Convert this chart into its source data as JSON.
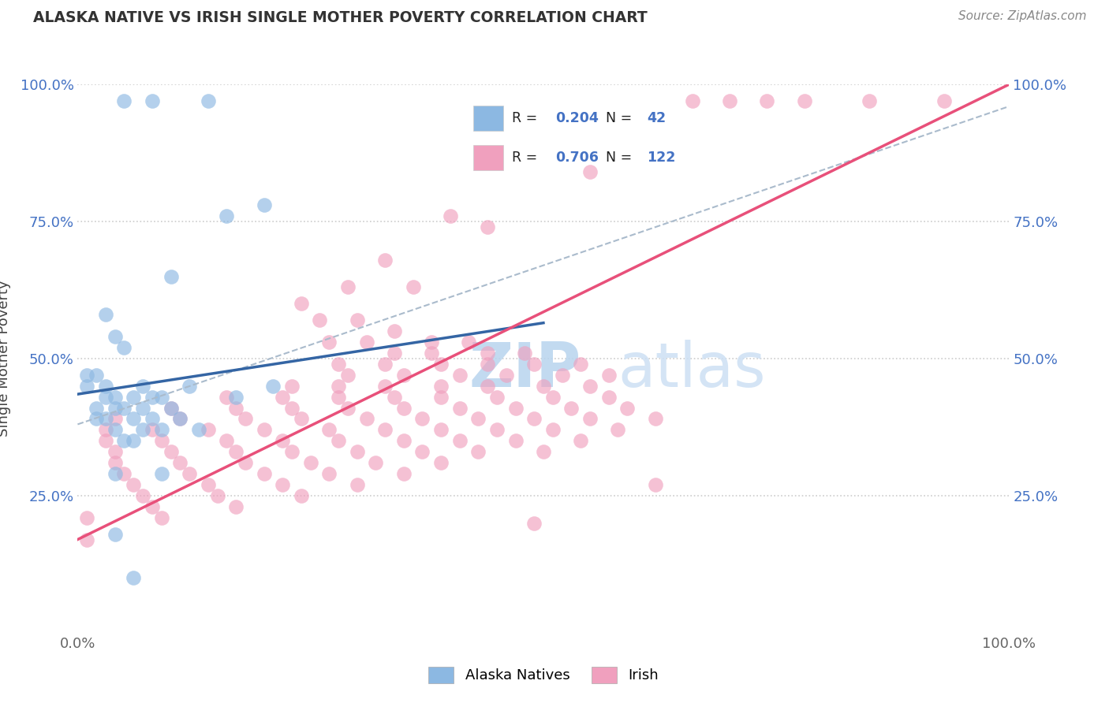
{
  "title": "ALASKA NATIVE VS IRISH SINGLE MOTHER POVERTY CORRELATION CHART",
  "source": "Source: ZipAtlas.com",
  "ylabel": "Single Mother Poverty",
  "xlabel": "",
  "xlim": [
    0,
    1
  ],
  "ylim": [
    0,
    1
  ],
  "alaska_R": 0.204,
  "alaska_N": 42,
  "irish_R": 0.706,
  "irish_N": 122,
  "alaska_color": "#8cb8e2",
  "irish_color": "#f0a0be",
  "alaska_line_color": "#3465a4",
  "irish_line_color": "#e8507a",
  "dashed_line_color": "#aabbcc",
  "watermark_color": "#cce0f0",
  "background_color": "#ffffff",
  "tick_color": "#4472c4",
  "alaska_line": [
    0.0,
    0.435,
    0.5,
    0.565
  ],
  "irish_line": [
    0.0,
    0.17,
    1.0,
    1.0
  ],
  "dashed_line": [
    0.0,
    0.38,
    1.0,
    0.96
  ],
  "alaska_scatter": [
    [
      0.05,
      0.97
    ],
    [
      0.08,
      0.97
    ],
    [
      0.14,
      0.97
    ],
    [
      0.16,
      0.76
    ],
    [
      0.2,
      0.78
    ],
    [
      0.1,
      0.65
    ],
    [
      0.03,
      0.58
    ],
    [
      0.04,
      0.54
    ],
    [
      0.05,
      0.52
    ],
    [
      0.01,
      0.47
    ],
    [
      0.02,
      0.47
    ],
    [
      0.01,
      0.45
    ],
    [
      0.03,
      0.45
    ],
    [
      0.07,
      0.45
    ],
    [
      0.12,
      0.45
    ],
    [
      0.21,
      0.45
    ],
    [
      0.03,
      0.43
    ],
    [
      0.04,
      0.43
    ],
    [
      0.06,
      0.43
    ],
    [
      0.08,
      0.43
    ],
    [
      0.09,
      0.43
    ],
    [
      0.17,
      0.43
    ],
    [
      0.02,
      0.41
    ],
    [
      0.04,
      0.41
    ],
    [
      0.05,
      0.41
    ],
    [
      0.07,
      0.41
    ],
    [
      0.1,
      0.41
    ],
    [
      0.02,
      0.39
    ],
    [
      0.03,
      0.39
    ],
    [
      0.06,
      0.39
    ],
    [
      0.08,
      0.39
    ],
    [
      0.11,
      0.39
    ],
    [
      0.04,
      0.37
    ],
    [
      0.07,
      0.37
    ],
    [
      0.09,
      0.37
    ],
    [
      0.13,
      0.37
    ],
    [
      0.05,
      0.35
    ],
    [
      0.06,
      0.35
    ],
    [
      0.04,
      0.29
    ],
    [
      0.09,
      0.29
    ],
    [
      0.04,
      0.18
    ],
    [
      0.06,
      0.1
    ]
  ],
  "irish_scatter": [
    [
      0.66,
      0.97
    ],
    [
      0.7,
      0.97
    ],
    [
      0.74,
      0.97
    ],
    [
      0.78,
      0.97
    ],
    [
      0.85,
      0.97
    ],
    [
      0.93,
      0.97
    ],
    [
      0.55,
      0.84
    ],
    [
      0.4,
      0.76
    ],
    [
      0.44,
      0.74
    ],
    [
      0.33,
      0.68
    ],
    [
      0.29,
      0.63
    ],
    [
      0.36,
      0.63
    ],
    [
      0.24,
      0.6
    ],
    [
      0.26,
      0.57
    ],
    [
      0.3,
      0.57
    ],
    [
      0.34,
      0.55
    ],
    [
      0.27,
      0.53
    ],
    [
      0.31,
      0.53
    ],
    [
      0.38,
      0.53
    ],
    [
      0.42,
      0.53
    ],
    [
      0.34,
      0.51
    ],
    [
      0.38,
      0.51
    ],
    [
      0.44,
      0.51
    ],
    [
      0.48,
      0.51
    ],
    [
      0.28,
      0.49
    ],
    [
      0.33,
      0.49
    ],
    [
      0.39,
      0.49
    ],
    [
      0.44,
      0.49
    ],
    [
      0.49,
      0.49
    ],
    [
      0.54,
      0.49
    ],
    [
      0.29,
      0.47
    ],
    [
      0.35,
      0.47
    ],
    [
      0.41,
      0.47
    ],
    [
      0.46,
      0.47
    ],
    [
      0.52,
      0.47
    ],
    [
      0.57,
      0.47
    ],
    [
      0.23,
      0.45
    ],
    [
      0.28,
      0.45
    ],
    [
      0.33,
      0.45
    ],
    [
      0.39,
      0.45
    ],
    [
      0.44,
      0.45
    ],
    [
      0.5,
      0.45
    ],
    [
      0.55,
      0.45
    ],
    [
      0.16,
      0.43
    ],
    [
      0.22,
      0.43
    ],
    [
      0.28,
      0.43
    ],
    [
      0.34,
      0.43
    ],
    [
      0.39,
      0.43
    ],
    [
      0.45,
      0.43
    ],
    [
      0.51,
      0.43
    ],
    [
      0.57,
      0.43
    ],
    [
      0.1,
      0.41
    ],
    [
      0.17,
      0.41
    ],
    [
      0.23,
      0.41
    ],
    [
      0.29,
      0.41
    ],
    [
      0.35,
      0.41
    ],
    [
      0.41,
      0.41
    ],
    [
      0.47,
      0.41
    ],
    [
      0.53,
      0.41
    ],
    [
      0.59,
      0.41
    ],
    [
      0.04,
      0.39
    ],
    [
      0.11,
      0.39
    ],
    [
      0.18,
      0.39
    ],
    [
      0.24,
      0.39
    ],
    [
      0.31,
      0.39
    ],
    [
      0.37,
      0.39
    ],
    [
      0.43,
      0.39
    ],
    [
      0.49,
      0.39
    ],
    [
      0.55,
      0.39
    ],
    [
      0.62,
      0.39
    ],
    [
      0.03,
      0.37
    ],
    [
      0.08,
      0.37
    ],
    [
      0.14,
      0.37
    ],
    [
      0.2,
      0.37
    ],
    [
      0.27,
      0.37
    ],
    [
      0.33,
      0.37
    ],
    [
      0.39,
      0.37
    ],
    [
      0.45,
      0.37
    ],
    [
      0.51,
      0.37
    ],
    [
      0.58,
      0.37
    ],
    [
      0.03,
      0.35
    ],
    [
      0.09,
      0.35
    ],
    [
      0.16,
      0.35
    ],
    [
      0.22,
      0.35
    ],
    [
      0.28,
      0.35
    ],
    [
      0.35,
      0.35
    ],
    [
      0.41,
      0.35
    ],
    [
      0.47,
      0.35
    ],
    [
      0.54,
      0.35
    ],
    [
      0.04,
      0.33
    ],
    [
      0.1,
      0.33
    ],
    [
      0.17,
      0.33
    ],
    [
      0.23,
      0.33
    ],
    [
      0.3,
      0.33
    ],
    [
      0.37,
      0.33
    ],
    [
      0.43,
      0.33
    ],
    [
      0.5,
      0.33
    ],
    [
      0.04,
      0.31
    ],
    [
      0.11,
      0.31
    ],
    [
      0.18,
      0.31
    ],
    [
      0.25,
      0.31
    ],
    [
      0.32,
      0.31
    ],
    [
      0.39,
      0.31
    ],
    [
      0.05,
      0.29
    ],
    [
      0.12,
      0.29
    ],
    [
      0.2,
      0.29
    ],
    [
      0.27,
      0.29
    ],
    [
      0.35,
      0.29
    ],
    [
      0.06,
      0.27
    ],
    [
      0.14,
      0.27
    ],
    [
      0.22,
      0.27
    ],
    [
      0.3,
      0.27
    ],
    [
      0.07,
      0.25
    ],
    [
      0.15,
      0.25
    ],
    [
      0.24,
      0.25
    ],
    [
      0.08,
      0.23
    ],
    [
      0.17,
      0.23
    ],
    [
      0.01,
      0.21
    ],
    [
      0.09,
      0.21
    ],
    [
      0.01,
      0.17
    ],
    [
      0.49,
      0.2
    ],
    [
      0.62,
      0.27
    ]
  ]
}
